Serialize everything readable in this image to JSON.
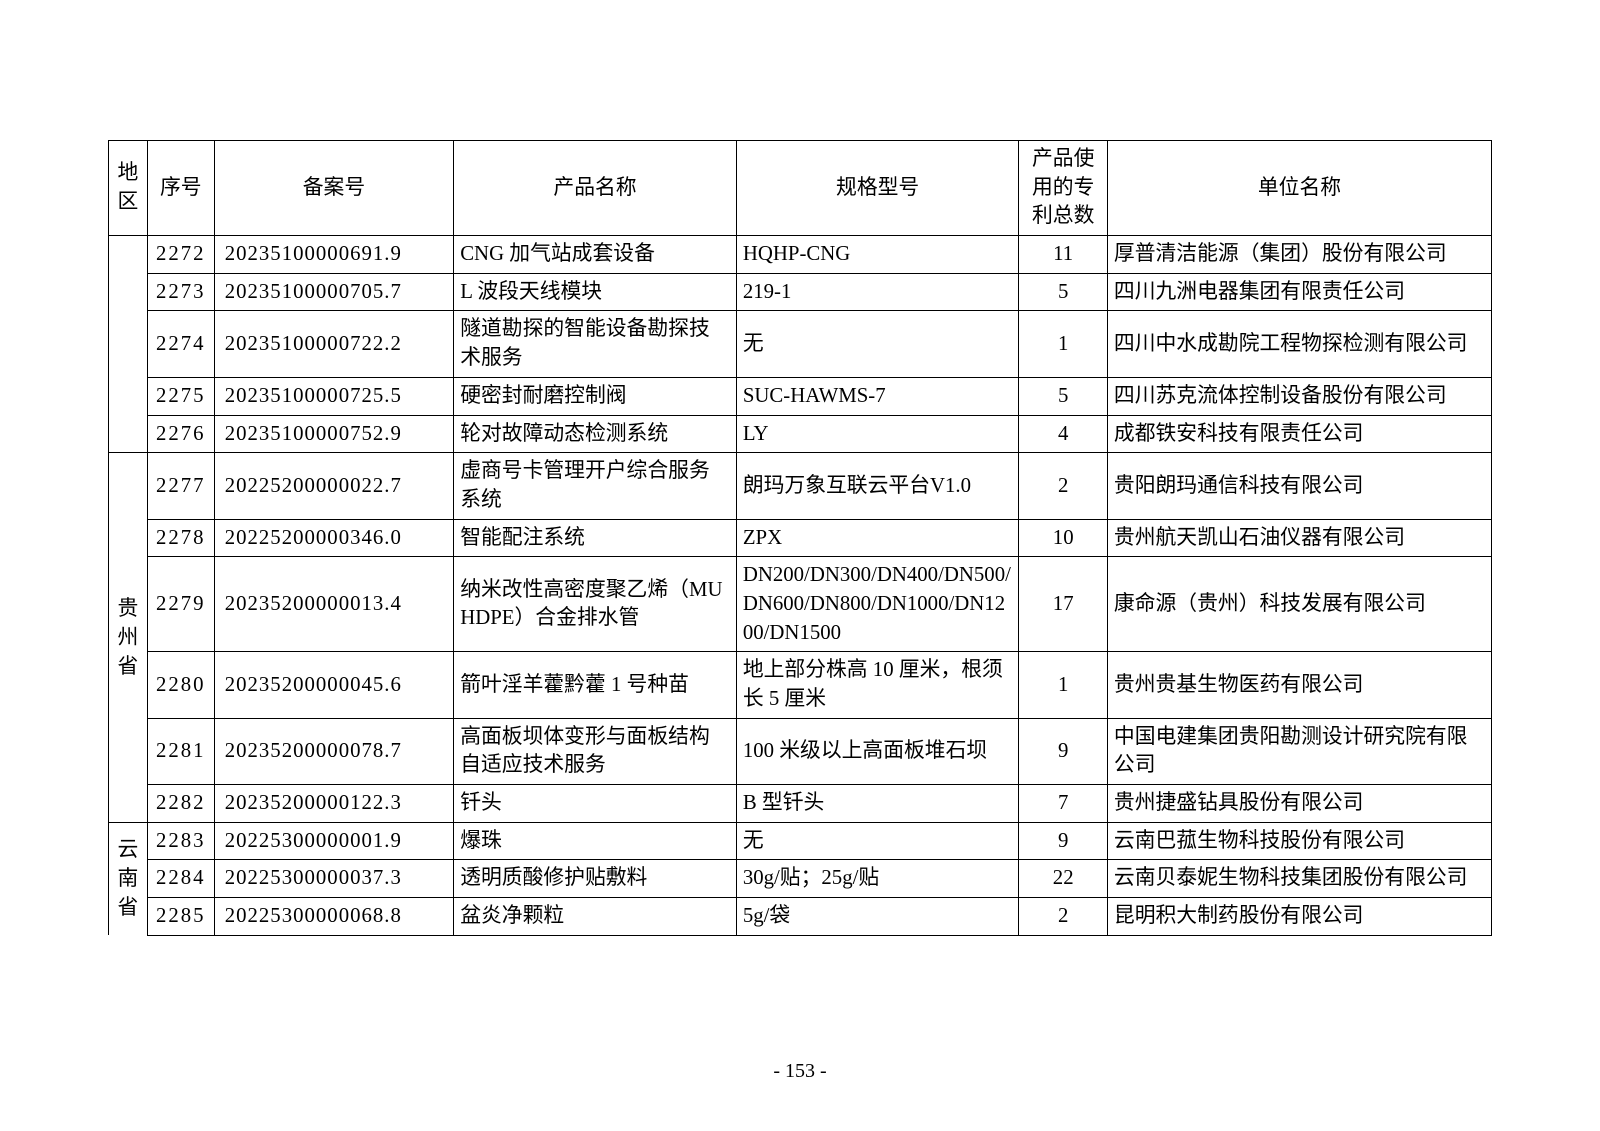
{
  "page_number": "- 153 -",
  "columns": [
    {
      "key": "region",
      "label": "地区"
    },
    {
      "key": "idx",
      "label": "序号"
    },
    {
      "key": "filing",
      "label": "备案号"
    },
    {
      "key": "name",
      "label": "产品名称"
    },
    {
      "key": "spec",
      "label": "规格型号"
    },
    {
      "key": "patents",
      "label": "产品使用的专利总数"
    },
    {
      "key": "unit",
      "label": "单位名称"
    }
  ],
  "region_groups": [
    {
      "region": "",
      "open_top": true,
      "open_bottom": false,
      "rows": [
        {
          "idx": "2272",
          "filing": "20235100000691.9",
          "name": "CNG 加气站成套设备",
          "spec": "HQHP-CNG",
          "patents": "11",
          "unit": "厚普清洁能源（集团）股份有限公司"
        },
        {
          "idx": "2273",
          "filing": "20235100000705.7",
          "name": "L 波段天线模块",
          "spec": "219-1",
          "patents": "5",
          "unit": "四川九洲电器集团有限责任公司"
        },
        {
          "idx": "2274",
          "filing": "20235100000722.2",
          "name": "隧道勘探的智能设备勘探技术服务",
          "spec": "无",
          "patents": "1",
          "unit": "四川中水成勘院工程物探检测有限公司"
        },
        {
          "idx": "2275",
          "filing": "20235100000725.5",
          "name": "硬密封耐磨控制阀",
          "spec": "SUC-HAWMS-7",
          "patents": "5",
          "unit": "四川苏克流体控制设备股份有限公司"
        },
        {
          "idx": "2276",
          "filing": "20235100000752.9",
          "name": "轮对故障动态检测系统",
          "spec": "LY",
          "patents": "4",
          "unit": "成都铁安科技有限责任公司"
        }
      ]
    },
    {
      "region": "贵州省",
      "open_top": false,
      "open_bottom": false,
      "rows": [
        {
          "idx": "2277",
          "filing": "20225200000022.7",
          "name": "虚商号卡管理开户综合服务系统",
          "spec": "朗玛万象互联云平台V1.0",
          "patents": "2",
          "unit": "贵阳朗玛通信科技有限公司"
        },
        {
          "idx": "2278",
          "filing": "20225200000346.0",
          "name": "智能配注系统",
          "spec": "ZPX",
          "patents": "10",
          "unit": "贵州航天凯山石油仪器有限公司"
        },
        {
          "idx": "2279",
          "filing": "20235200000013.4",
          "name": "纳米改性高密度聚乙烯（MUHDPE）合金排水管",
          "spec": "DN200/DN300/DN400/DN500/DN600/DN800/DN1000/DN1200/DN1500",
          "patents": "17",
          "unit": "康命源（贵州）科技发展有限公司"
        },
        {
          "idx": "2280",
          "filing": "20235200000045.6",
          "name": "箭叶淫羊藿黔藿 1 号种苗",
          "spec": "地上部分株高 10 厘米，根须长 5 厘米",
          "patents": "1",
          "unit": "贵州贵基生物医药有限公司"
        },
        {
          "idx": "2281",
          "filing": "20235200000078.7",
          "name": "高面板坝体变形与面板结构自适应技术服务",
          "spec": "100 米级以上高面板堆石坝",
          "patents": "9",
          "unit": "中国电建集团贵阳勘测设计研究院有限公司"
        },
        {
          "idx": "2282",
          "filing": "20235200000122.3",
          "name": "钎头",
          "spec": "B 型钎头",
          "patents": "7",
          "unit": "贵州捷盛钻具股份有限公司"
        }
      ]
    },
    {
      "region": "云南省",
      "open_top": false,
      "open_bottom": true,
      "rows": [
        {
          "idx": "2283",
          "filing": "20225300000001.9",
          "name": "爆珠",
          "spec": "无",
          "patents": "9",
          "unit": "云南巴菰生物科技股份有限公司"
        },
        {
          "idx": "2284",
          "filing": "20225300000037.3",
          "name": "透明质酸修护贴敷料",
          "spec": "30g/贴；25g/贴",
          "patents": "22",
          "unit": "云南贝泰妮生物科技集团股份有限公司"
        },
        {
          "idx": "2285",
          "filing": "20225300000068.8",
          "name": "盆炎净颗粒",
          "spec": "5g/袋",
          "patents": "2",
          "unit": "昆明积大制药股份有限公司"
        }
      ]
    }
  ],
  "style": {
    "font_family": "SimSun",
    "font_size_pt": 15.5,
    "border_color": "#000000",
    "background_color": "#ffffff",
    "text_color": "#000000",
    "column_widths_ratio": [
      36,
      62,
      222,
      262,
      262,
      82,
      356
    ],
    "column_align": [
      "center",
      "center",
      "left",
      "left",
      "left",
      "center",
      "left"
    ]
  }
}
